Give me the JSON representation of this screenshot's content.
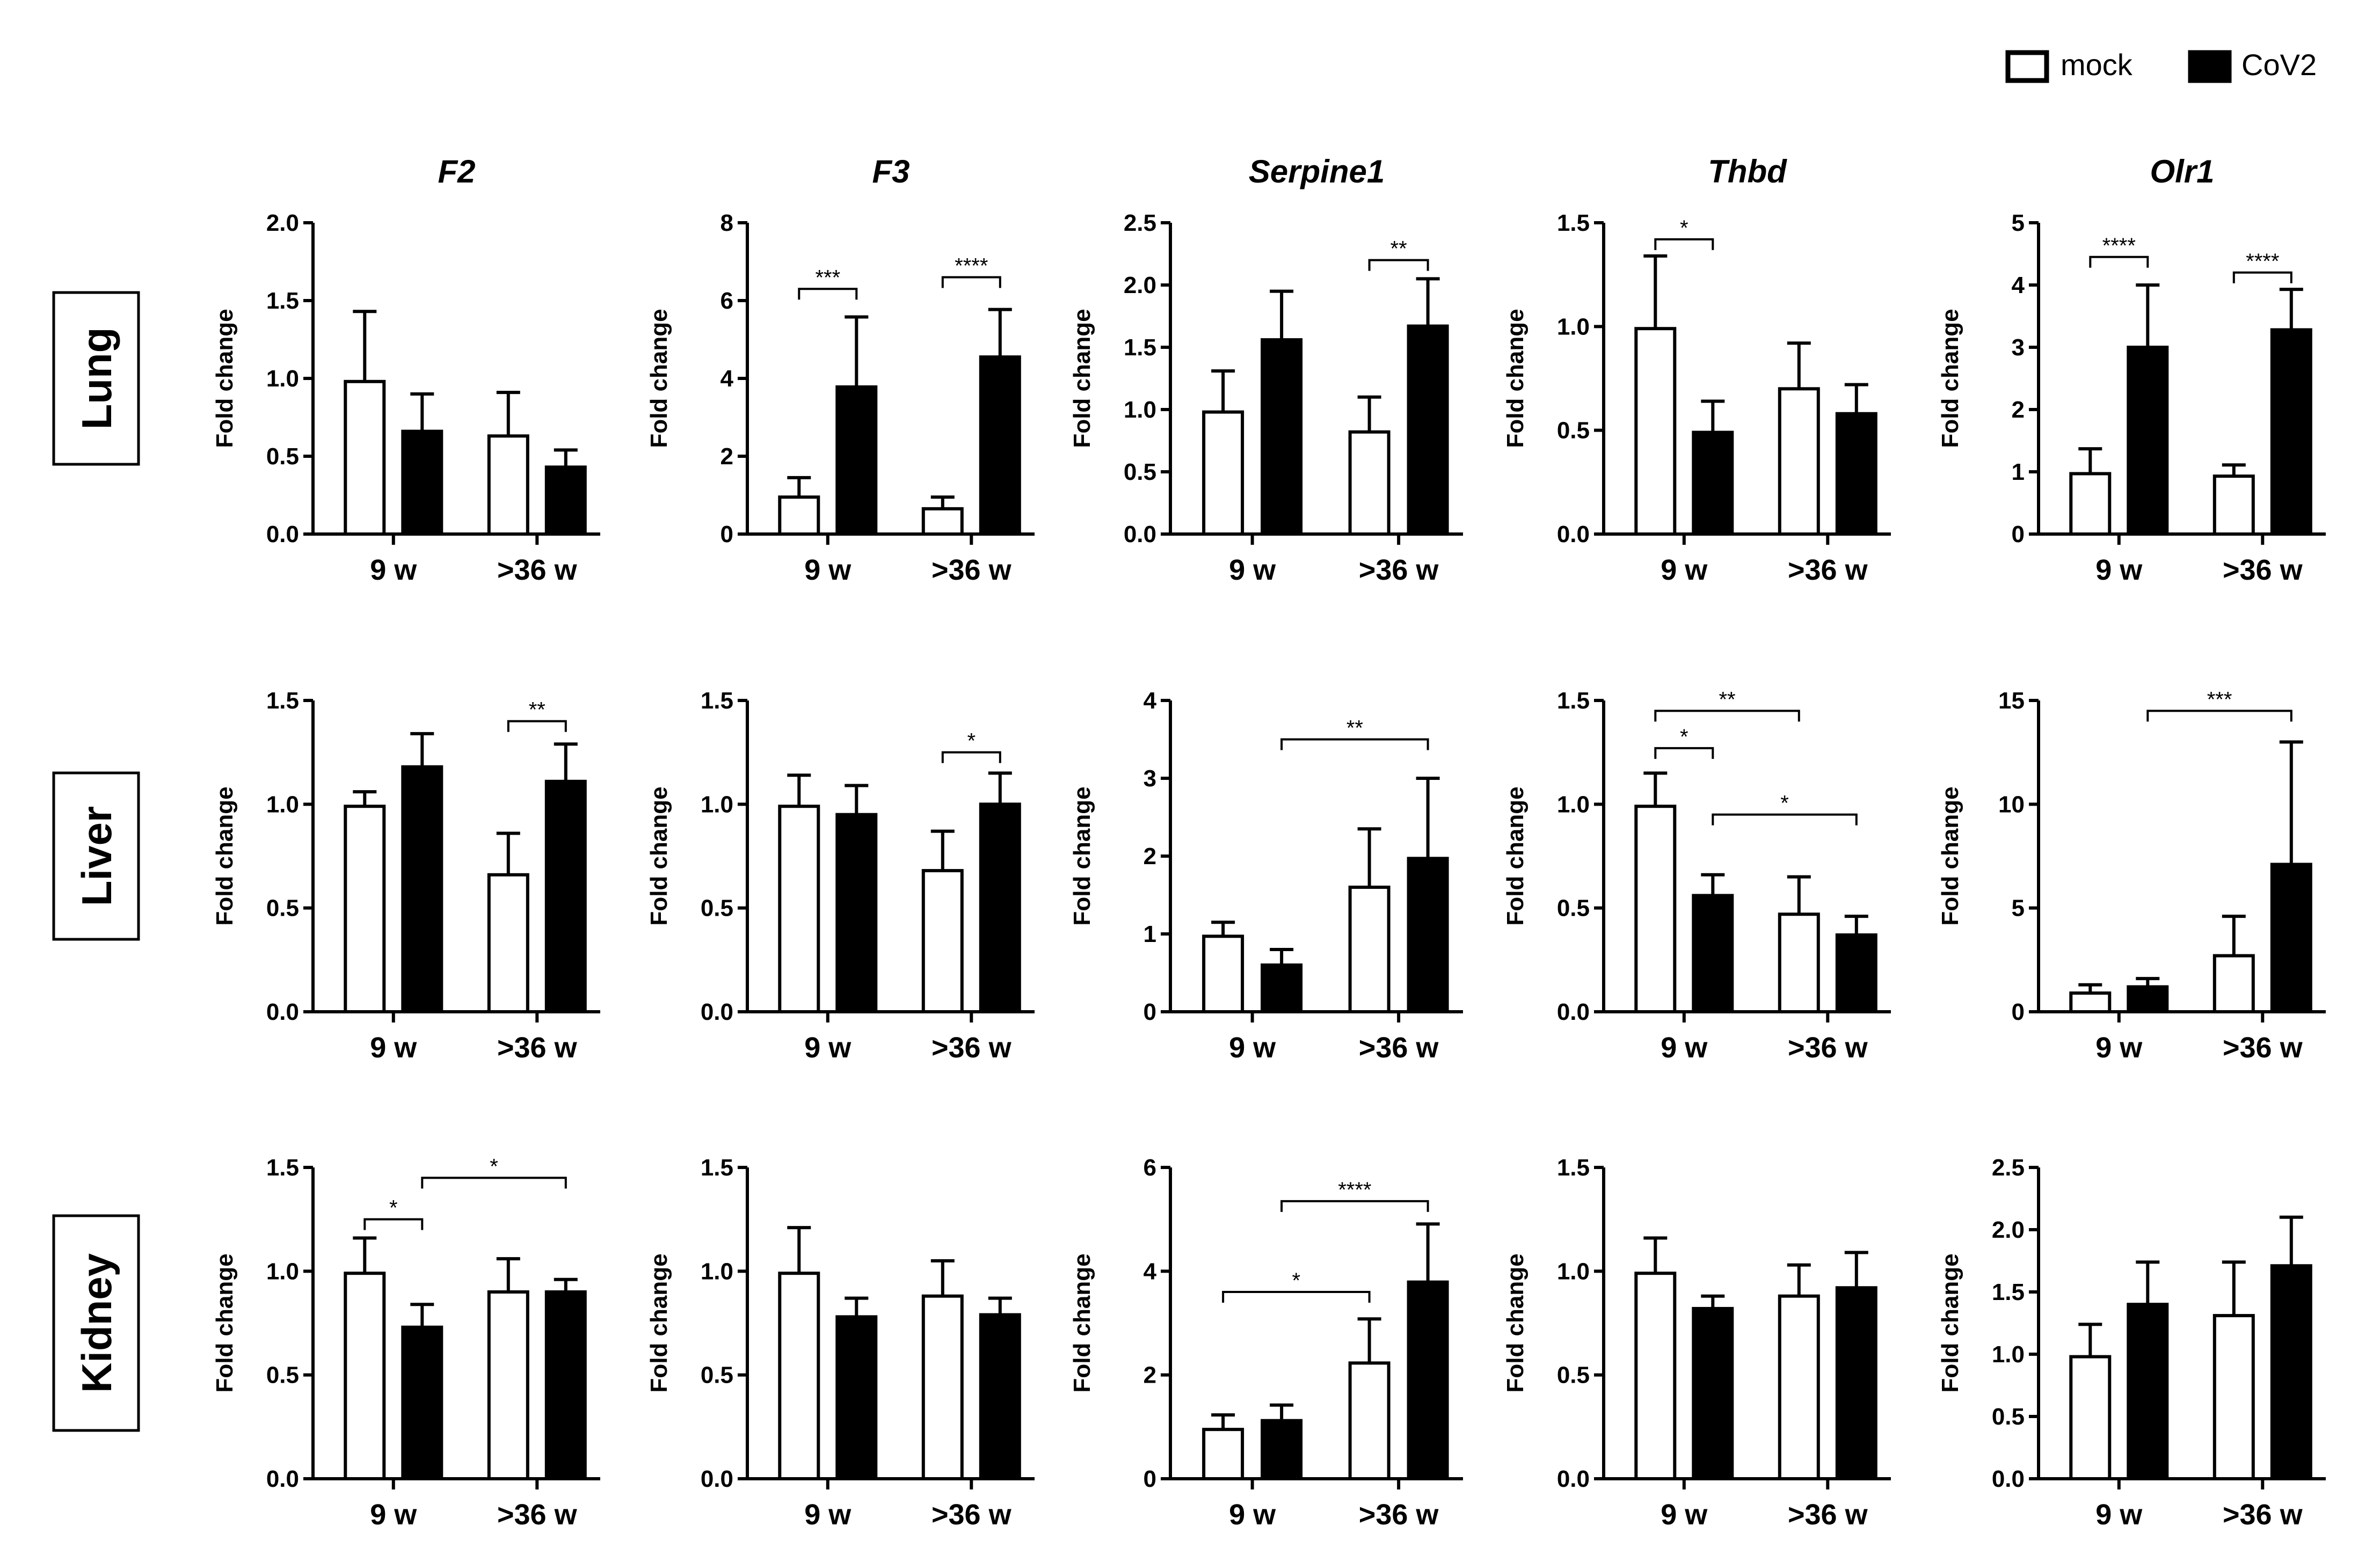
{
  "legend": {
    "mock_label": "mock",
    "cov2_label": "CoV2"
  },
  "colors": {
    "mock": "#ffffff",
    "cov2": "#000000",
    "ink": "#000000"
  },
  "row_labels": [
    "Lung",
    "Liver",
    "Kidney"
  ],
  "column_titles": [
    "F2",
    "F3",
    "Serpine1",
    "Thbd",
    "Olr1"
  ],
  "groups": [
    "9 w",
    ">36 w"
  ],
  "ylabel": "Fold change",
  "chart_data": [
    {
      "type": "bar",
      "tissue": "Lung",
      "gene": "F2",
      "title": "F2",
      "ylabel": "Fold change",
      "categories": [
        "9 w",
        ">36 w"
      ],
      "ylim": [
        0,
        2.0
      ],
      "ticks": [
        0.0,
        0.5,
        1.0,
        1.5,
        2.0
      ],
      "tick_labels": [
        "0.0",
        "0.5",
        "1.0",
        "1.5",
        "2.0"
      ],
      "series": [
        {
          "name": "mock",
          "values": [
            0.98,
            0.63
          ],
          "errors": [
            0.45,
            0.28
          ]
        },
        {
          "name": "CoV2",
          "values": [
            0.66,
            0.43
          ],
          "errors": [
            0.24,
            0.11
          ]
        }
      ],
      "significance": []
    },
    {
      "type": "bar",
      "tissue": "Lung",
      "gene": "F3",
      "title": "F3",
      "ylabel": "Fold change",
      "categories": [
        "9 w",
        ">36 w"
      ],
      "ylim": [
        0,
        8
      ],
      "ticks": [
        0,
        2,
        4,
        6,
        8
      ],
      "tick_labels": [
        "0",
        "2",
        "4",
        "6",
        "8"
      ],
      "series": [
        {
          "name": "mock",
          "values": [
            0.95,
            0.65
          ],
          "errors": [
            0.5,
            0.3
          ]
        },
        {
          "name": "CoV2",
          "values": [
            3.78,
            4.55
          ],
          "errors": [
            1.8,
            1.22
          ]
        }
      ],
      "significance": [
        {
          "from": [
            0,
            0
          ],
          "to": [
            0,
            1
          ],
          "label": "***",
          "y": 6.3
        },
        {
          "from": [
            1,
            0
          ],
          "to": [
            1,
            1
          ],
          "label": "****",
          "y": 6.6
        }
      ]
    },
    {
      "type": "bar",
      "tissue": "Lung",
      "gene": "Serpine1",
      "title": "Serpine1",
      "ylabel": "Fold change",
      "categories": [
        "9 w",
        ">36 w"
      ],
      "ylim": [
        0,
        2.5
      ],
      "ticks": [
        0.0,
        0.5,
        1.0,
        1.5,
        2.0,
        2.5
      ],
      "tick_labels": [
        "0.0",
        "0.5",
        "1.0",
        "1.5",
        "2.0",
        "2.5"
      ],
      "series": [
        {
          "name": "mock",
          "values": [
            0.98,
            0.82
          ],
          "errors": [
            0.33,
            0.28
          ]
        },
        {
          "name": "CoV2",
          "values": [
            1.56,
            1.67
          ],
          "errors": [
            0.39,
            0.38
          ]
        }
      ],
      "significance": [
        {
          "from": [
            1,
            0
          ],
          "to": [
            1,
            1
          ],
          "label": "**",
          "y": 2.2
        }
      ]
    },
    {
      "type": "bar",
      "tissue": "Lung",
      "gene": "Thbd",
      "title": "Thbd",
      "ylabel": "Fold change",
      "categories": [
        "9 w",
        ">36 w"
      ],
      "ylim": [
        0,
        1.5
      ],
      "ticks": [
        0.0,
        0.5,
        1.0,
        1.5
      ],
      "tick_labels": [
        "0.0",
        "0.5",
        "1.0",
        "1.5"
      ],
      "series": [
        {
          "name": "mock",
          "values": [
            0.99,
            0.7
          ],
          "errors": [
            0.35,
            0.22
          ]
        },
        {
          "name": "CoV2",
          "values": [
            0.49,
            0.58
          ],
          "errors": [
            0.15,
            0.14
          ]
        }
      ],
      "significance": [
        {
          "from": [
            0,
            0
          ],
          "to": [
            0,
            1
          ],
          "label": "*",
          "y": 1.42
        }
      ]
    },
    {
      "type": "bar",
      "tissue": "Lung",
      "gene": "Olr1",
      "title": "Olr1",
      "ylabel": "Fold change",
      "categories": [
        "9 w",
        ">36 w"
      ],
      "ylim": [
        0,
        5
      ],
      "ticks": [
        0,
        1,
        2,
        3,
        4,
        5
      ],
      "tick_labels": [
        "0",
        "1",
        "2",
        "3",
        "4",
        "5"
      ],
      "series": [
        {
          "name": "mock",
          "values": [
            0.97,
            0.93
          ],
          "errors": [
            0.4,
            0.18
          ]
        },
        {
          "name": "CoV2",
          "values": [
            3.0,
            3.28
          ],
          "errors": [
            1.0,
            0.65
          ]
        }
      ],
      "significance": [
        {
          "from": [
            0,
            0
          ],
          "to": [
            0,
            1
          ],
          "label": "****",
          "y": 4.45
        },
        {
          "from": [
            1,
            0
          ],
          "to": [
            1,
            1
          ],
          "label": "****",
          "y": 4.2
        }
      ]
    },
    {
      "type": "bar",
      "tissue": "Liver",
      "gene": "F2",
      "title": "",
      "ylabel": "Fold change",
      "categories": [
        "9 w",
        ">36 w"
      ],
      "ylim": [
        0,
        1.5
      ],
      "ticks": [
        0.0,
        0.5,
        1.0,
        1.5
      ],
      "tick_labels": [
        "0.0",
        "0.5",
        "1.0",
        "1.5"
      ],
      "series": [
        {
          "name": "mock",
          "values": [
            0.99,
            0.66
          ],
          "errors": [
            0.07,
            0.2
          ]
        },
        {
          "name": "CoV2",
          "values": [
            1.18,
            1.11
          ],
          "errors": [
            0.16,
            0.18
          ]
        }
      ],
      "significance": [
        {
          "from": [
            1,
            0
          ],
          "to": [
            1,
            1
          ],
          "label": "**",
          "y": 1.4
        }
      ]
    },
    {
      "type": "bar",
      "tissue": "Liver",
      "gene": "F3",
      "title": "",
      "ylabel": "Fold change",
      "categories": [
        "9 w",
        ">36 w"
      ],
      "ylim": [
        0,
        1.5
      ],
      "ticks": [
        0.0,
        0.5,
        1.0,
        1.5
      ],
      "tick_labels": [
        "0.0",
        "0.5",
        "1.0",
        "1.5"
      ],
      "series": [
        {
          "name": "mock",
          "values": [
            0.99,
            0.68
          ],
          "errors": [
            0.15,
            0.19
          ]
        },
        {
          "name": "CoV2",
          "values": [
            0.95,
            1.0
          ],
          "errors": [
            0.14,
            0.15
          ]
        }
      ],
      "significance": [
        {
          "from": [
            1,
            0
          ],
          "to": [
            1,
            1
          ],
          "label": "*",
          "y": 1.25
        }
      ]
    },
    {
      "type": "bar",
      "tissue": "Liver",
      "gene": "Serpine1",
      "title": "",
      "ylabel": "Fold change",
      "categories": [
        "9 w",
        ">36 w"
      ],
      "ylim": [
        0,
        4
      ],
      "ticks": [
        0,
        1,
        2,
        3,
        4
      ],
      "tick_labels": [
        "0",
        "1",
        "2",
        "3",
        "4"
      ],
      "series": [
        {
          "name": "mock",
          "values": [
            0.97,
            1.6
          ],
          "errors": [
            0.18,
            0.75
          ]
        },
        {
          "name": "CoV2",
          "values": [
            0.6,
            1.97
          ],
          "errors": [
            0.2,
            1.03
          ]
        }
      ],
      "significance": [
        {
          "from": [
            0,
            1
          ],
          "to": [
            1,
            1
          ],
          "label": "**",
          "y": 3.5
        }
      ]
    },
    {
      "type": "bar",
      "tissue": "Liver",
      "gene": "Thbd",
      "title": "",
      "ylabel": "Fold change",
      "categories": [
        "9 w",
        ">36 w"
      ],
      "ylim": [
        0,
        1.5
      ],
      "ticks": [
        0.0,
        0.5,
        1.0,
        1.5
      ],
      "tick_labels": [
        "0.0",
        "0.5",
        "1.0",
        "1.5"
      ],
      "series": [
        {
          "name": "mock",
          "values": [
            0.99,
            0.47
          ],
          "errors": [
            0.16,
            0.18
          ]
        },
        {
          "name": "CoV2",
          "values": [
            0.56,
            0.37
          ],
          "errors": [
            0.1,
            0.09
          ]
        }
      ],
      "significance": [
        {
          "from": [
            0,
            0
          ],
          "to": [
            0,
            1
          ],
          "label": "*",
          "y": 1.27
        },
        {
          "from": [
            0,
            0
          ],
          "to": [
            1,
            0
          ],
          "label": "**",
          "y": 1.45
        },
        {
          "from": [
            0,
            1
          ],
          "to": [
            1,
            1
          ],
          "label": "*",
          "y": 0.95
        }
      ]
    },
    {
      "type": "bar",
      "tissue": "Liver",
      "gene": "Olr1",
      "title": "",
      "ylabel": "Fold change",
      "categories": [
        "9 w",
        ">36 w"
      ],
      "ylim": [
        0,
        15
      ],
      "ticks": [
        0,
        5,
        10,
        15
      ],
      "tick_labels": [
        "0",
        "5",
        "10",
        "15"
      ],
      "series": [
        {
          "name": "mock",
          "values": [
            0.9,
            2.7
          ],
          "errors": [
            0.4,
            1.9
          ]
        },
        {
          "name": "CoV2",
          "values": [
            1.2,
            7.1
          ],
          "errors": [
            0.4,
            5.9
          ]
        }
      ],
      "significance": [
        {
          "from": [
            0,
            1
          ],
          "to": [
            1,
            1
          ],
          "label": "***",
          "y": 14.5
        }
      ]
    },
    {
      "type": "bar",
      "tissue": "Kidney",
      "gene": "F2",
      "title": "",
      "ylabel": "Fold change",
      "categories": [
        "9 w",
        ">36 w"
      ],
      "ylim": [
        0,
        1.5
      ],
      "ticks": [
        0.0,
        0.5,
        1.0,
        1.5
      ],
      "tick_labels": [
        "0.0",
        "0.5",
        "1.0",
        "1.5"
      ],
      "series": [
        {
          "name": "mock",
          "values": [
            0.99,
            0.9
          ],
          "errors": [
            0.17,
            0.16
          ]
        },
        {
          "name": "CoV2",
          "values": [
            0.73,
            0.9
          ],
          "errors": [
            0.11,
            0.06
          ]
        }
      ],
      "significance": [
        {
          "from": [
            0,
            0
          ],
          "to": [
            0,
            1
          ],
          "label": "*",
          "y": 1.25
        },
        {
          "from": [
            0,
            1
          ],
          "to": [
            1,
            1
          ],
          "label": "*",
          "y": 1.45
        }
      ]
    },
    {
      "type": "bar",
      "tissue": "Kidney",
      "gene": "F3",
      "title": "",
      "ylabel": "Fold change",
      "categories": [
        "9 w",
        ">36 w"
      ],
      "ylim": [
        0,
        1.5
      ],
      "ticks": [
        0.0,
        0.5,
        1.0,
        1.5
      ],
      "tick_labels": [
        "0.0",
        "0.5",
        "1.0",
        "1.5"
      ],
      "series": [
        {
          "name": "mock",
          "values": [
            0.99,
            0.88
          ],
          "errors": [
            0.22,
            0.17
          ]
        },
        {
          "name": "CoV2",
          "values": [
            0.78,
            0.79
          ],
          "errors": [
            0.09,
            0.08
          ]
        }
      ],
      "significance": []
    },
    {
      "type": "bar",
      "tissue": "Kidney",
      "gene": "Serpine1",
      "title": "",
      "ylabel": "Fold change",
      "categories": [
        "9 w",
        ">36 w"
      ],
      "ylim": [
        0,
        6
      ],
      "ticks": [
        0,
        2,
        4,
        6
      ],
      "tick_labels": [
        "0",
        "2",
        "4",
        "6"
      ],
      "series": [
        {
          "name": "mock",
          "values": [
            0.95,
            2.23
          ],
          "errors": [
            0.28,
            0.85
          ]
        },
        {
          "name": "CoV2",
          "values": [
            1.12,
            3.79
          ],
          "errors": [
            0.3,
            1.12
          ]
        }
      ],
      "significance": [
        {
          "from": [
            0,
            0
          ],
          "to": [
            1,
            0
          ],
          "label": "*",
          "y": 3.6
        },
        {
          "from": [
            0,
            1
          ],
          "to": [
            1,
            1
          ],
          "label": "****",
          "y": 5.35
        }
      ]
    },
    {
      "type": "bar",
      "tissue": "Kidney",
      "gene": "Thbd",
      "title": "",
      "ylabel": "Fold change",
      "categories": [
        "9 w",
        ">36 w"
      ],
      "ylim": [
        0,
        1.5
      ],
      "ticks": [
        0.0,
        0.5,
        1.0,
        1.5
      ],
      "tick_labels": [
        "0.0",
        "0.5",
        "1.0",
        "1.5"
      ],
      "series": [
        {
          "name": "mock",
          "values": [
            0.99,
            0.88
          ],
          "errors": [
            0.17,
            0.15
          ]
        },
        {
          "name": "CoV2",
          "values": [
            0.82,
            0.92
          ],
          "errors": [
            0.06,
            0.17
          ]
        }
      ],
      "significance": []
    },
    {
      "type": "bar",
      "tissue": "Kidney",
      "gene": "Olr1",
      "title": "",
      "ylabel": "Fold change",
      "categories": [
        "9 w",
        ">36 w"
      ],
      "ylim": [
        0,
        2.5
      ],
      "ticks": [
        0.0,
        0.5,
        1.0,
        1.5,
        2.0,
        2.5
      ],
      "tick_labels": [
        "0.0",
        "0.5",
        "1.0",
        "1.5",
        "2.0",
        "2.5"
      ],
      "series": [
        {
          "name": "mock",
          "values": [
            0.98,
            1.31
          ],
          "errors": [
            0.26,
            0.43
          ]
        },
        {
          "name": "CoV2",
          "values": [
            1.4,
            1.71
          ],
          "errors": [
            0.34,
            0.39
          ]
        }
      ],
      "significance": []
    }
  ]
}
